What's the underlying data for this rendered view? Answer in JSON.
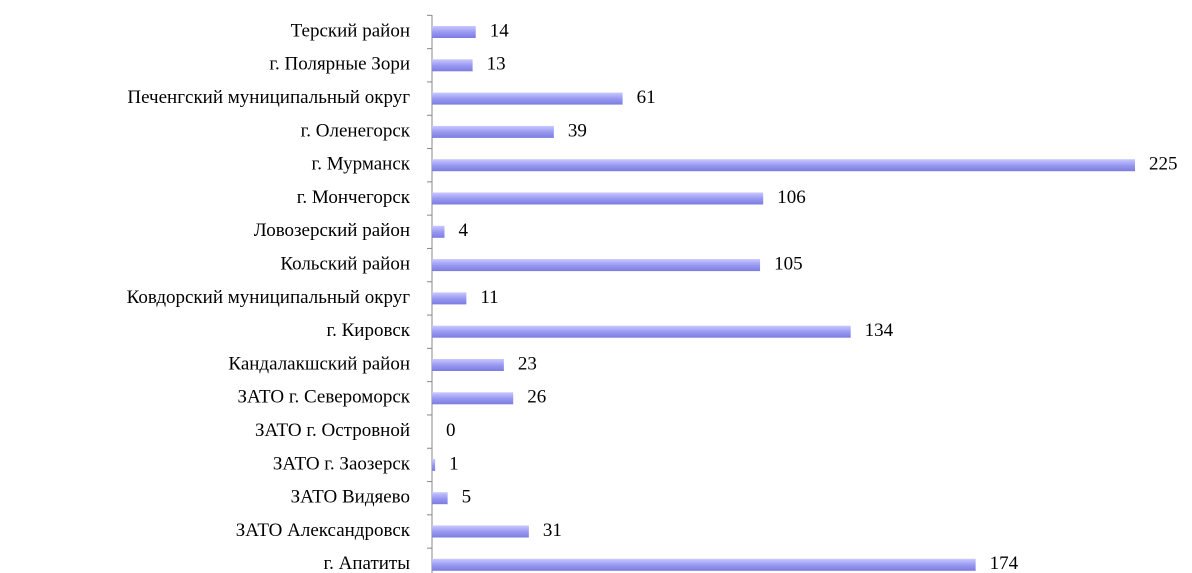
{
  "chart_data": {
    "type": "bar",
    "orientation": "horizontal",
    "categories": [
      "Терский район",
      "г. Полярные Зори",
      "Печенгский муниципальный округ",
      "г. Оленегорск",
      "г. Мурманск",
      "г. Мончегорск",
      "Ловозерский район",
      "Кольский район",
      "Ковдорский муниципальный округ",
      "г. Кировск",
      "Кандалакшский район",
      "ЗАТО г. Североморск",
      "ЗАТО г. Островной",
      "ЗАТО г. Заозерск",
      "ЗАТО Видяево",
      "ЗАТО Александровск",
      "г. Апатиты"
    ],
    "values": [
      14,
      13,
      61,
      39,
      225,
      106,
      4,
      105,
      11,
      134,
      23,
      26,
      0,
      1,
      5,
      31,
      174
    ],
    "color": "#9a9af2",
    "xlim": [
      0,
      225
    ]
  }
}
